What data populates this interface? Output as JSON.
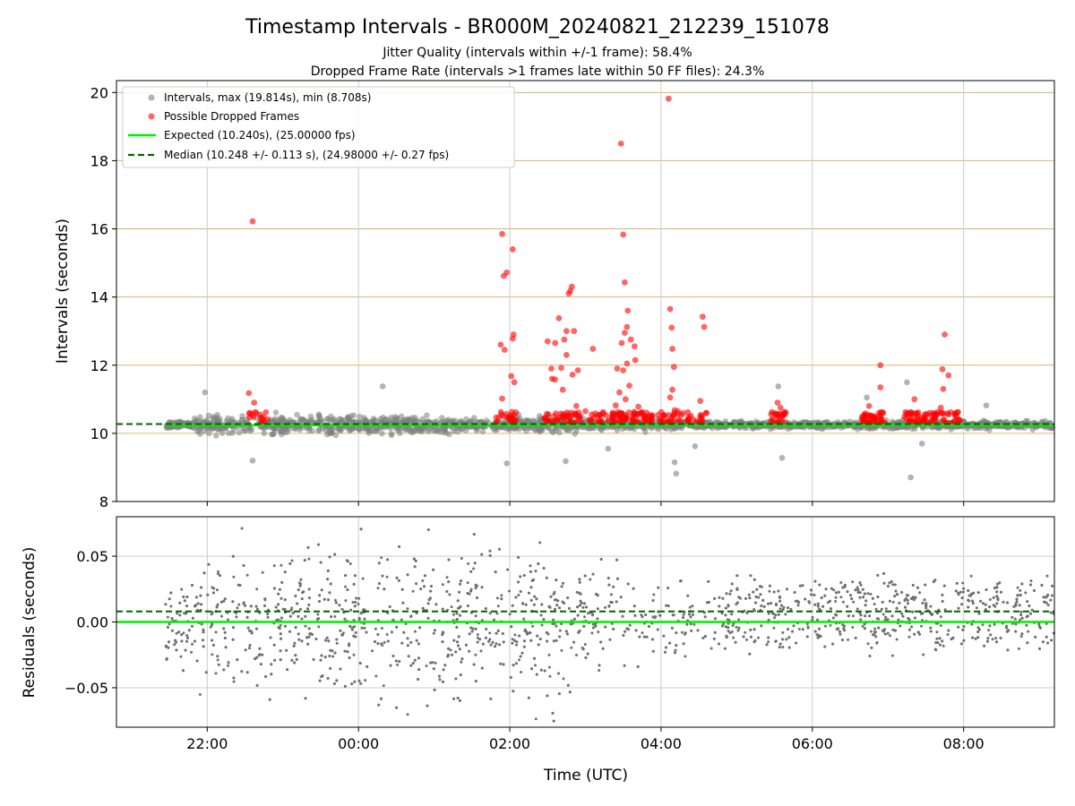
{
  "figure": {
    "title": "Timestamp Intervals - BR000M_20240821_212239_151078",
    "subtitle1": "Jitter Quality (intervals within +/-1 frame): 58.4%",
    "subtitle2": "Dropped Frame Rate (intervals >1 frames late within 50 FF files): 24.3%"
  },
  "colors": {
    "interval": "#808080",
    "dropped": "#ff0000",
    "expected": "#00ee00",
    "median": "#006400",
    "hgrid_top": "#d2b66e",
    "grid": "#cccccc"
  },
  "chart_data": [
    {
      "type": "scatter",
      "panel": "intervals",
      "xlabel": "",
      "ylabel": "Intervals (seconds)",
      "xlim": [
        20.8,
        33.2
      ],
      "ylim": [
        8,
        20.35
      ],
      "yticks": [
        8,
        10,
        12,
        14,
        16,
        18,
        20
      ],
      "xticks": [
        22,
        24,
        26,
        28,
        30,
        32
      ],
      "xticklabels": [
        "22:00",
        "00:00",
        "02:00",
        "04:00",
        "06:00",
        "08:00"
      ],
      "grid": true,
      "legend_placement": "top-left",
      "x_units": "hours since 2024-08-21 00:00 UTC",
      "expected": 10.24,
      "median": 10.248,
      "series": [
        {
          "name": "Intervals, max (19.814s), min (8.708s)",
          "kind": "scatter"
        },
        {
          "name": "Possible Dropped Frames",
          "kind": "scatter",
          "points": [
            [
              22.6,
              16.22
            ],
            [
              22.55,
              11.18
            ],
            [
              22.62,
              10.9
            ],
            [
              22.7,
              10.55
            ],
            [
              22.72,
              10.32
            ],
            [
              25.9,
              15.85
            ],
            [
              25.92,
              14.62
            ],
            [
              25.96,
              14.72
            ],
            [
              26.04,
              15.4
            ],
            [
              25.88,
              12.6
            ],
            [
              25.93,
              12.45
            ],
            [
              26.05,
              12.9
            ],
            [
              26.04,
              12.78
            ],
            [
              26.02,
              11.68
            ],
            [
              25.9,
              11.02
            ],
            [
              26.06,
              11.5
            ],
            [
              26.5,
              12.7
            ],
            [
              26.55,
              11.9
            ],
            [
              26.56,
              11.6
            ],
            [
              26.65,
              13.38
            ],
            [
              26.6,
              12.65
            ],
            [
              26.72,
              12.75
            ],
            [
              26.75,
              13.0
            ],
            [
              26.78,
              14.1
            ],
            [
              26.8,
              14.18
            ],
            [
              26.82,
              14.3
            ],
            [
              26.85,
              13.0
            ],
            [
              26.83,
              11.72
            ],
            [
              26.9,
              11.85
            ],
            [
              26.7,
              11.28
            ],
            [
              26.75,
              12.3
            ],
            [
              26.6,
              11.58
            ],
            [
              26.68,
              11.92
            ],
            [
              26.88,
              10.8
            ],
            [
              27.1,
              12.48
            ],
            [
              27.0,
              10.65
            ],
            [
              27.4,
              10.82
            ],
            [
              27.45,
              11.2
            ],
            [
              27.5,
              11.85
            ],
            [
              27.55,
              12.05
            ],
            [
              27.47,
              18.5
            ],
            [
              27.5,
              15.83
            ],
            [
              27.52,
              14.43
            ],
            [
              27.56,
              13.6
            ],
            [
              27.55,
              13.12
            ],
            [
              27.52,
              12.95
            ],
            [
              27.6,
              12.75
            ],
            [
              27.48,
              12.65
            ],
            [
              27.65,
              12.55
            ],
            [
              27.66,
              12.15
            ],
            [
              27.53,
              11.0
            ],
            [
              27.42,
              11.9
            ],
            [
              27.58,
              11.4
            ],
            [
              27.7,
              10.78
            ],
            [
              28.1,
              19.82
            ],
            [
              28.12,
              13.65
            ],
            [
              28.15,
              12.48
            ],
            [
              28.17,
              11.95
            ],
            [
              28.14,
              13.1
            ],
            [
              28.15,
              11.28
            ],
            [
              28.12,
              11.05
            ],
            [
              28.18,
              10.68
            ],
            [
              28.22,
              10.65
            ],
            [
              28.55,
              13.42
            ],
            [
              28.57,
              13.12
            ],
            [
              28.52,
              10.95
            ],
            [
              28.6,
              10.6
            ],
            [
              29.54,
              10.9
            ],
            [
              29.58,
              10.75
            ],
            [
              29.6,
              10.55
            ],
            [
              30.75,
              10.8
            ],
            [
              30.9,
              12.0
            ],
            [
              30.9,
              11.35
            ],
            [
              30.8,
              10.5
            ],
            [
              31.35,
              11.0
            ],
            [
              31.3,
              10.62
            ],
            [
              31.5,
              10.5
            ],
            [
              31.75,
              12.9
            ],
            [
              31.72,
              11.88
            ],
            [
              31.73,
              11.3
            ],
            [
              31.8,
              11.7
            ],
            [
              31.7,
              10.75
            ],
            [
              31.8,
              10.55
            ]
          ]
        },
        {
          "name": "Expected (10.240s), (25.00000 fps)",
          "kind": "line"
        },
        {
          "name": "Median (10.248 +/- 0.113 s), (24.98000 +/- 0.27 fps)",
          "kind": "dashed-line"
        }
      ]
    },
    {
      "type": "scatter",
      "panel": "residuals",
      "xlabel": "Time (UTC)",
      "ylabel": "Residuals (seconds)",
      "xlim": [
        20.8,
        33.2
      ],
      "ylim": [
        -0.08,
        0.08
      ],
      "yticks": [
        -0.05,
        0.0,
        0.05
      ],
      "yticklabels": [
        "−0.05",
        "0.00",
        "0.05"
      ],
      "xticks": [
        22,
        24,
        26,
        28,
        30,
        32
      ],
      "xticklabels": [
        "22:00",
        "00:00",
        "02:00",
        "04:00",
        "06:00",
        "08:00"
      ],
      "grid": true,
      "expected_residual": 0.0,
      "median_residual": 0.008
    }
  ]
}
